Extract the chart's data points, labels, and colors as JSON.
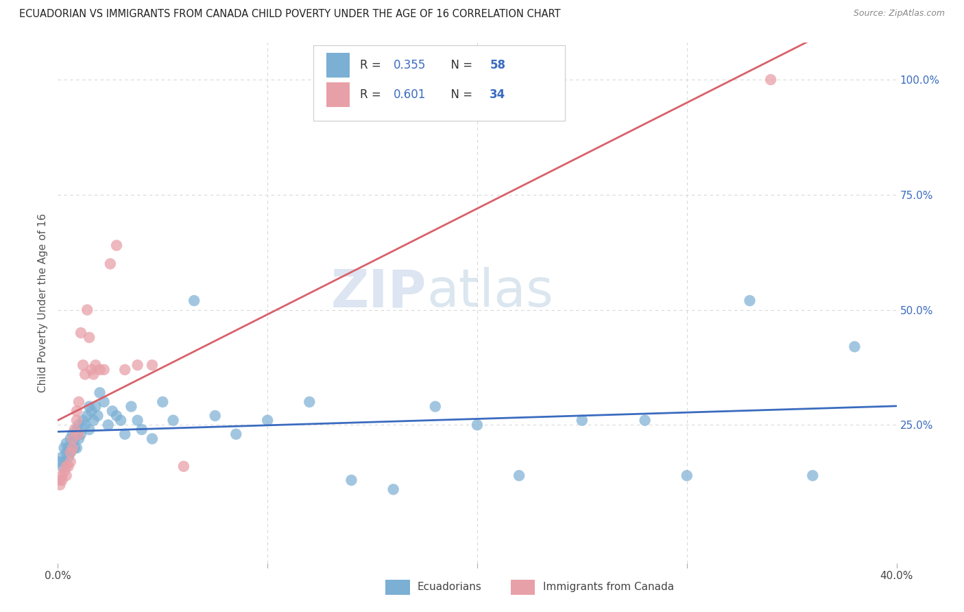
{
  "title": "ECUADORIAN VS IMMIGRANTS FROM CANADA CHILD POVERTY UNDER THE AGE OF 16 CORRELATION CHART",
  "source": "Source: ZipAtlas.com",
  "ylabel": "Child Poverty Under the Age of 16",
  "xlim": [
    0.0,
    0.4
  ],
  "ylim": [
    -0.05,
    1.08
  ],
  "blue_color": "#7bafd4",
  "pink_color": "#e8a0a8",
  "blue_line_color": "#3a6bbf",
  "pink_line_color": "#d9606a",
  "legend_blue_r": "0.355",
  "legend_blue_n": "58",
  "legend_pink_r": "0.601",
  "legend_pink_n": "34",
  "background_color": "#ffffff",
  "grid_color": "#d8d8d8",
  "watermark_zip": "ZIP",
  "watermark_atlas": "atlas",
  "title_color": "#222222",
  "ecuadorians_x": [
    0.001,
    0.002,
    0.002,
    0.003,
    0.003,
    0.004,
    0.004,
    0.005,
    0.005,
    0.006,
    0.006,
    0.007,
    0.007,
    0.008,
    0.008,
    0.009,
    0.009,
    0.01,
    0.01,
    0.011,
    0.012,
    0.013,
    0.014,
    0.015,
    0.015,
    0.016,
    0.017,
    0.018,
    0.019,
    0.02,
    0.022,
    0.024,
    0.026,
    0.028,
    0.03,
    0.032,
    0.035,
    0.038,
    0.04,
    0.045,
    0.05,
    0.055,
    0.065,
    0.075,
    0.085,
    0.1,
    0.12,
    0.14,
    0.16,
    0.18,
    0.2,
    0.22,
    0.25,
    0.28,
    0.3,
    0.33,
    0.36,
    0.38
  ],
  "ecuadorians_y": [
    0.17,
    0.18,
    0.16,
    0.2,
    0.17,
    0.19,
    0.21,
    0.2,
    0.18,
    0.22,
    0.19,
    0.21,
    0.23,
    0.2,
    0.22,
    0.24,
    0.2,
    0.22,
    0.25,
    0.23,
    0.26,
    0.25,
    0.27,
    0.29,
    0.24,
    0.28,
    0.26,
    0.29,
    0.27,
    0.32,
    0.3,
    0.25,
    0.28,
    0.27,
    0.26,
    0.23,
    0.29,
    0.26,
    0.24,
    0.22,
    0.3,
    0.26,
    0.52,
    0.27,
    0.23,
    0.26,
    0.3,
    0.13,
    0.11,
    0.29,
    0.25,
    0.14,
    0.26,
    0.26,
    0.14,
    0.52,
    0.14,
    0.42
  ],
  "canada_x": [
    0.001,
    0.001,
    0.002,
    0.002,
    0.003,
    0.004,
    0.004,
    0.005,
    0.006,
    0.006,
    0.007,
    0.007,
    0.008,
    0.009,
    0.009,
    0.01,
    0.01,
    0.011,
    0.012,
    0.013,
    0.014,
    0.015,
    0.016,
    0.017,
    0.018,
    0.02,
    0.022,
    0.025,
    0.028,
    0.032,
    0.038,
    0.045,
    0.06,
    0.34
  ],
  "canada_y": [
    0.13,
    0.12,
    0.14,
    0.13,
    0.15,
    0.16,
    0.14,
    0.16,
    0.17,
    0.19,
    0.2,
    0.22,
    0.24,
    0.26,
    0.28,
    0.3,
    0.23,
    0.45,
    0.38,
    0.36,
    0.5,
    0.44,
    0.37,
    0.36,
    0.38,
    0.37,
    0.37,
    0.6,
    0.64,
    0.37,
    0.38,
    0.38,
    0.16,
    1.0
  ]
}
